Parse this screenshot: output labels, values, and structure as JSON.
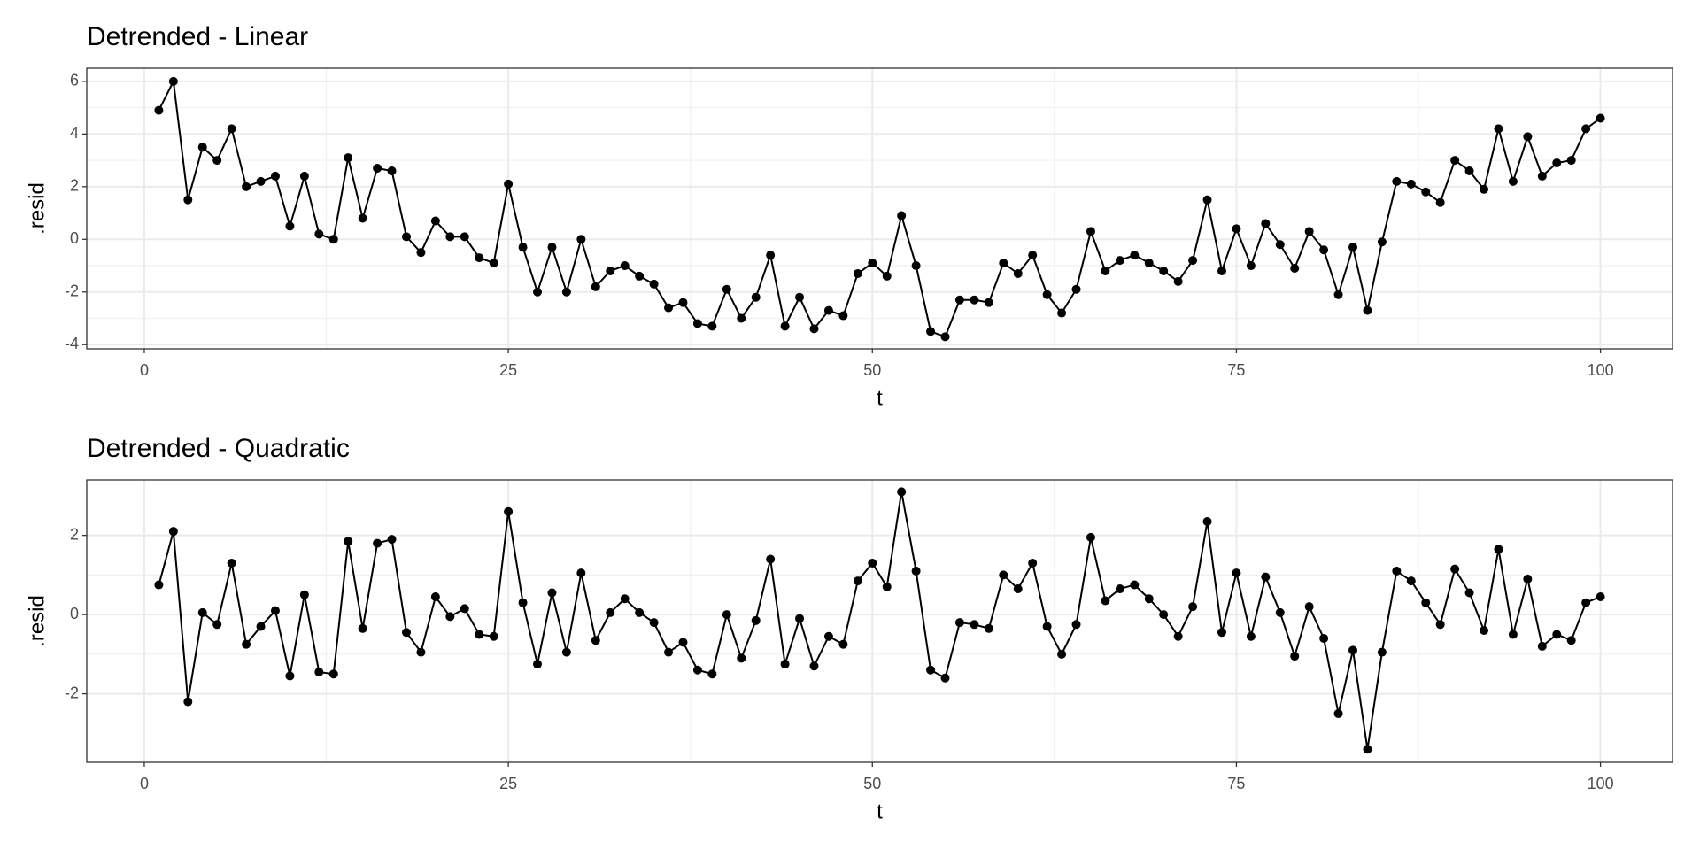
{
  "chart_data": [
    {
      "type": "line",
      "title": "Detrended - Linear",
      "x_label": "t",
      "y_label": ".resid",
      "color": "#000000",
      "markers": true,
      "grid": true,
      "x": [
        1,
        2,
        3,
        4,
        5,
        6,
        7,
        8,
        9,
        10,
        11,
        12,
        13,
        14,
        15,
        16,
        17,
        18,
        19,
        20,
        21,
        22,
        23,
        24,
        25,
        26,
        27,
        28,
        29,
        30,
        31,
        32,
        33,
        34,
        35,
        36,
        37,
        38,
        39,
        40,
        41,
        42,
        43,
        44,
        45,
        46,
        47,
        48,
        49,
        50,
        51,
        52,
        53,
        54,
        55,
        56,
        57,
        58,
        59,
        60,
        61,
        62,
        63,
        64,
        65,
        66,
        67,
        68,
        69,
        70,
        71,
        72,
        73,
        74,
        75,
        76,
        77,
        78,
        79,
        80,
        81,
        82,
        83,
        84,
        85,
        86,
        87,
        88,
        89,
        90,
        91,
        92,
        93,
        94,
        95,
        96,
        97,
        98,
        99,
        100
      ],
      "values": [
        4.9,
        6.0,
        1.5,
        3.5,
        3.0,
        4.2,
        2.0,
        2.2,
        2.4,
        0.5,
        2.4,
        0.2,
        0.0,
        3.1,
        0.8,
        2.7,
        2.6,
        0.1,
        -0.5,
        0.7,
        0.1,
        0.1,
        -0.7,
        -0.9,
        2.1,
        -0.3,
        -2.0,
        -0.3,
        -2.0,
        0.0,
        -1.8,
        -1.2,
        -1.0,
        -1.4,
        -1.7,
        -2.6,
        -2.4,
        -3.2,
        -3.3,
        -1.9,
        -3.0,
        -2.2,
        -0.6,
        -3.3,
        -2.2,
        -3.4,
        -2.7,
        -2.9,
        -1.3,
        -0.9,
        -1.4,
        0.9,
        -1.0,
        -3.5,
        -3.7,
        -2.3,
        -2.3,
        -2.4,
        -0.9,
        -1.3,
        -0.6,
        -2.1,
        -2.8,
        -1.9,
        0.3,
        -1.2,
        -0.8,
        -0.6,
        -0.9,
        -1.2,
        -1.6,
        -0.8,
        1.5,
        -1.2,
        0.4,
        -1.0,
        0.6,
        -0.2,
        -1.1,
        0.3,
        -0.4,
        -2.1,
        -0.3,
        -2.7,
        -0.1,
        2.2,
        2.1,
        1.8,
        1.4,
        3.0,
        2.6,
        1.9,
        4.2,
        2.2,
        3.9,
        2.4,
        2.9,
        3.0,
        4.2,
        4.6
      ],
      "xlim": [
        -3.95,
        104.95
      ],
      "xticks": [
        0,
        25,
        50,
        75,
        100
      ],
      "ylim": [
        -4.16,
        6.5
      ],
      "yticks": [
        -4,
        -2,
        0,
        2,
        4,
        6
      ]
    },
    {
      "type": "line",
      "title": "Detrended - Quadratic",
      "x_label": "t",
      "y_label": ".resid",
      "color": "#000000",
      "markers": true,
      "grid": true,
      "x": [
        1,
        2,
        3,
        4,
        5,
        6,
        7,
        8,
        9,
        10,
        11,
        12,
        13,
        14,
        15,
        16,
        17,
        18,
        19,
        20,
        21,
        22,
        23,
        24,
        25,
        26,
        27,
        28,
        29,
        30,
        31,
        32,
        33,
        34,
        35,
        36,
        37,
        38,
        39,
        40,
        41,
        42,
        43,
        44,
        45,
        46,
        47,
        48,
        49,
        50,
        51,
        52,
        53,
        54,
        55,
        56,
        57,
        58,
        59,
        60,
        61,
        62,
        63,
        64,
        65,
        66,
        67,
        68,
        69,
        70,
        71,
        72,
        73,
        74,
        75,
        76,
        77,
        78,
        79,
        80,
        81,
        82,
        83,
        84,
        85,
        86,
        87,
        88,
        89,
        90,
        91,
        92,
        93,
        94,
        95,
        96,
        97,
        98,
        99,
        100
      ],
      "values": [
        0.75,
        2.1,
        -2.2,
        0.05,
        -0.25,
        1.3,
        -0.75,
        -0.3,
        0.1,
        -1.55,
        0.5,
        -1.45,
        -1.5,
        1.85,
        -0.35,
        1.8,
        1.9,
        -0.45,
        -0.95,
        0.45,
        -0.05,
        0.15,
        -0.5,
        -0.55,
        2.6,
        0.3,
        -1.25,
        0.55,
        -0.95,
        1.05,
        -0.65,
        0.05,
        0.4,
        0.05,
        -0.2,
        -0.95,
        -0.7,
        -1.4,
        -1.5,
        0.0,
        -1.1,
        -0.15,
        1.4,
        -1.25,
        -0.1,
        -1.3,
        -0.55,
        -0.75,
        0.85,
        1.3,
        0.7,
        3.1,
        1.1,
        -1.4,
        -1.6,
        -0.2,
        -0.25,
        -0.35,
        1.0,
        0.65,
        1.3,
        -0.3,
        -1.0,
        -0.25,
        1.95,
        0.35,
        0.65,
        0.75,
        0.4,
        0.0,
        -0.55,
        0.2,
        2.35,
        -0.45,
        1.05,
        -0.55,
        0.95,
        0.05,
        -1.05,
        0.2,
        -0.6,
        -2.5,
        -0.9,
        -3.4,
        -0.95,
        1.1,
        0.85,
        0.3,
        -0.25,
        1.15,
        0.55,
        -0.4,
        1.65,
        -0.5,
        0.9,
        -0.8,
        -0.5,
        -0.65,
        0.3,
        0.45
      ],
      "xlim": [
        -3.95,
        104.95
      ],
      "xticks": [
        0,
        25,
        50,
        75,
        100
      ],
      "ylim": [
        -3.73,
        3.4
      ],
      "yticks": [
        -2,
        0,
        2
      ]
    }
  ]
}
